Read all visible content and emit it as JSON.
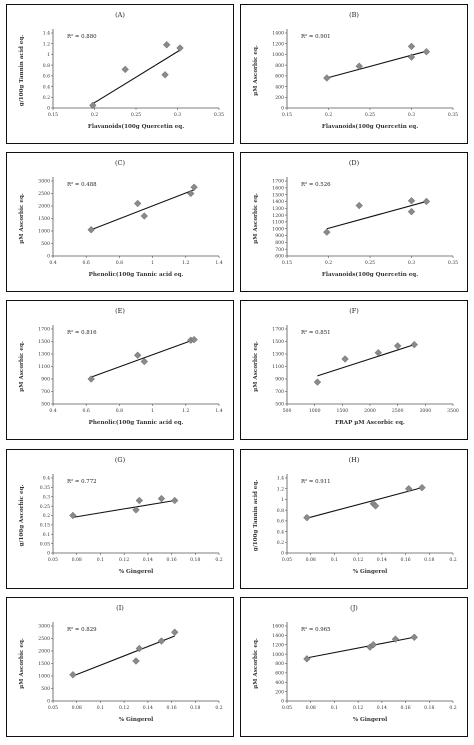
{
  "chart_data": [
    {
      "id": "A",
      "type": "scatter",
      "title": "(A)",
      "r2_label": "R² = 0.880",
      "xlabel": "Flavanoids(100g Quercetin eq.",
      "ylabel": "g/100g Tannin acid eq.",
      "xlim": [
        0.15,
        0.35
      ],
      "xticks": [
        "0.15",
        "0.2",
        "0.25",
        "0.3",
        "0.35"
      ],
      "ylim": [
        0,
        1.4
      ],
      "yticks": [
        "0",
        "0.2",
        "0.4",
        "0.6",
        "0.8",
        "1",
        "1.2",
        "1.4"
      ],
      "points": [
        [
          0.198,
          0.05
        ],
        [
          0.237,
          0.72
        ],
        [
          0.285,
          0.62
        ],
        [
          0.287,
          1.18
        ],
        [
          0.303,
          1.12
        ]
      ],
      "trend": [
        [
          0.198,
          0.08
        ],
        [
          0.303,
          1.08
        ]
      ]
    },
    {
      "id": "B",
      "type": "scatter",
      "title": "(B)",
      "r2_label": "R² = 0.901",
      "xlabel": "Flavanoids(100g Quercetin eq.",
      "ylabel": "µM Ascorbic eq.",
      "xlim": [
        0.15,
        0.35
      ],
      "xticks": [
        "0.15",
        "0.2",
        "0.25",
        "0.3",
        "0.35"
      ],
      "ylim": [
        0,
        1400
      ],
      "yticks": [
        "0",
        "200",
        "400",
        "600",
        "800",
        "1000",
        "1200",
        "1400"
      ],
      "points": [
        [
          0.198,
          560
        ],
        [
          0.237,
          780
        ],
        [
          0.3,
          950
        ],
        [
          0.3,
          1150
        ],
        [
          0.318,
          1050
        ]
      ],
      "trend": [
        [
          0.198,
          560
        ],
        [
          0.318,
          1060
        ]
      ]
    },
    {
      "id": "C",
      "type": "scatter",
      "title": "(C)",
      "r2_label": "R² = 0.488",
      "xlabel": "Phenolic(100g Tannic acid eq.",
      "ylabel": "µM Ascorbic eq.",
      "xlim": [
        0.4,
        1.4
      ],
      "xticks": [
        "0.4",
        "0.6",
        "0.8",
        "1",
        "1.2",
        "1.4"
      ],
      "ylim": [
        0,
        3000
      ],
      "yticks": [
        "0",
        "500",
        "1000",
        "1500",
        "2000",
        "2500",
        "3000"
      ],
      "points": [
        [
          0.63,
          1050
        ],
        [
          0.91,
          2100
        ],
        [
          0.95,
          1600
        ],
        [
          1.23,
          2500
        ],
        [
          1.25,
          2750
        ]
      ],
      "trend": [
        [
          0.63,
          1050
        ],
        [
          1.25,
          2650
        ]
      ]
    },
    {
      "id": "D",
      "type": "scatter",
      "title": "(D)",
      "r2_label": "R² = 0.526",
      "xlabel": "Flavanoids(100g Quercetin eq.",
      "ylabel": "µM Ascorbic eq.",
      "xlim": [
        0.15,
        0.35
      ],
      "xticks": [
        "0.15",
        "0.2",
        "0.25",
        "0.3",
        "0.35"
      ],
      "ylim": [
        600,
        1700
      ],
      "yticks": [
        "600",
        "700",
        "800",
        "900",
        "1000",
        "1100",
        "1200",
        "1300",
        "1400",
        "1500",
        "1600",
        "1700"
      ],
      "points": [
        [
          0.198,
          950
        ],
        [
          0.237,
          1340
        ],
        [
          0.3,
          1250
        ],
        [
          0.3,
          1410
        ],
        [
          0.318,
          1400
        ]
      ],
      "trend": [
        [
          0.198,
          1000
        ],
        [
          0.318,
          1400
        ]
      ]
    },
    {
      "id": "E",
      "type": "scatter",
      "title": "(E)",
      "r2_label": "R² = 0.816",
      "xlabel": "Phenolic(100g Tannic acid eq.",
      "ylabel": "µM Ascorbic eq.",
      "xlim": [
        0.4,
        1.4
      ],
      "xticks": [
        "0.4",
        "0.6",
        "0.8",
        "1",
        "1.2",
        "1.4"
      ],
      "ylim": [
        500,
        1700
      ],
      "yticks": [
        "500",
        "700",
        "900",
        "1100",
        "1300",
        "1500",
        "1700"
      ],
      "points": [
        [
          0.63,
          900
        ],
        [
          0.91,
          1280
        ],
        [
          0.95,
          1180
        ],
        [
          1.23,
          1520
        ],
        [
          1.25,
          1530
        ]
      ],
      "trend": [
        [
          0.63,
          930
        ],
        [
          1.25,
          1530
        ]
      ]
    },
    {
      "id": "F",
      "type": "scatter",
      "title": "(F)",
      "r2_label": "R² = 0.851",
      "xlabel": "FRAP µM Ascorbic eq.",
      "ylabel": "µM Ascorbic eq.",
      "xlim": [
        500,
        3500
      ],
      "xticks": [
        "500",
        "1000",
        "1500",
        "2000",
        "2500",
        "3000",
        "3500"
      ],
      "ylim": [
        500,
        1700
      ],
      "yticks": [
        "500",
        "700",
        "900",
        "1100",
        "1300",
        "1500",
        "1700"
      ],
      "points": [
        [
          1050,
          850
        ],
        [
          1550,
          1220
        ],
        [
          2150,
          1320
        ],
        [
          2500,
          1430
        ],
        [
          2800,
          1450
        ]
      ],
      "trend": [
        [
          1050,
          950
        ],
        [
          2800,
          1450
        ]
      ]
    },
    {
      "id": "G",
      "type": "scatter",
      "title": "(G)",
      "r2_label": "R² = 0.772",
      "xlabel": "% Gingerol",
      "ylabel": "g/100g Ascorbic eq.",
      "xlim": [
        0.05,
        0.2
      ],
      "xticks": [
        "0.05",
        "0.08",
        "0.1",
        "0.12",
        "0.14",
        "0.16",
        "0.18",
        "0.2"
      ],
      "ylim": [
        0,
        0.4
      ],
      "yticks": [
        "0",
        "0.05",
        "0.1",
        "0.15",
        "0.2",
        "0.25",
        "0.3",
        "0.35",
        "0.4"
      ],
      "points": [
        [
          0.068,
          0.2
        ],
        [
          0.125,
          0.23
        ],
        [
          0.128,
          0.28
        ],
        [
          0.148,
          0.29
        ],
        [
          0.16,
          0.28
        ]
      ],
      "trend": [
        [
          0.068,
          0.19
        ],
        [
          0.16,
          0.28
        ]
      ]
    },
    {
      "id": "H",
      "type": "scatter",
      "title": "(H)",
      "r2_label": "R² = 0.911",
      "xlabel": "% Gingerol",
      "ylabel": "g/100g Tannin acid eq.",
      "xlim": [
        0.05,
        0.2
      ],
      "xticks": [
        "0.05",
        "0.08",
        "0.1",
        "0.12",
        "0.14",
        "0.16",
        "0.18",
        "0.2"
      ],
      "ylim": [
        0,
        1.4
      ],
      "yticks": [
        "0",
        "0.2",
        "0.4",
        "0.6",
        "0.8",
        "1",
        "1.2",
        "1.4"
      ],
      "points": [
        [
          0.068,
          0.66
        ],
        [
          0.128,
          0.92
        ],
        [
          0.13,
          0.88
        ],
        [
          0.16,
          1.2
        ],
        [
          0.172,
          1.22
        ]
      ],
      "trend": [
        [
          0.068,
          0.65
        ],
        [
          0.172,
          1.22
        ]
      ]
    },
    {
      "id": "I",
      "type": "scatter",
      "title": "(I)",
      "r2_label": "R² = 0.829",
      "xlabel": "% Gingerol",
      "ylabel": "µM Ascorbic eq.",
      "xlim": [
        0.05,
        0.2
      ],
      "xticks": [
        "0.05",
        "0.08",
        "0.1",
        "0.12",
        "0.14",
        "0.16",
        "0.18",
        "0.2"
      ],
      "ylim": [
        0,
        3000
      ],
      "yticks": [
        "0",
        "500",
        "1000",
        "1500",
        "2000",
        "2500",
        "3000"
      ],
      "points": [
        [
          0.068,
          1050
        ],
        [
          0.125,
          1600
        ],
        [
          0.128,
          2100
        ],
        [
          0.148,
          2400
        ],
        [
          0.16,
          2750
        ]
      ],
      "trend": [
        [
          0.068,
          1000
        ],
        [
          0.16,
          2600
        ]
      ]
    },
    {
      "id": "J",
      "type": "scatter",
      "title": "(J)",
      "r2_label": "R² = 0.965",
      "xlabel": "% Gingerol",
      "ylabel": "µM Ascorbic eq.",
      "xlim": [
        0.05,
        0.2
      ],
      "xticks": [
        "0.05",
        "0.08",
        "0.1",
        "0.12",
        "0.14",
        "0.16",
        "0.18",
        "0.2"
      ],
      "ylim": [
        0,
        1600
      ],
      "yticks": [
        "0",
        "200",
        "400",
        "600",
        "800",
        "1000",
        "1200",
        "1400",
        "1600"
      ],
      "points": [
        [
          0.068,
          900
        ],
        [
          0.125,
          1150
        ],
        [
          0.128,
          1200
        ],
        [
          0.148,
          1320
        ],
        [
          0.165,
          1360
        ]
      ],
      "trend": [
        [
          0.068,
          920
        ],
        [
          0.165,
          1360
        ]
      ]
    }
  ]
}
